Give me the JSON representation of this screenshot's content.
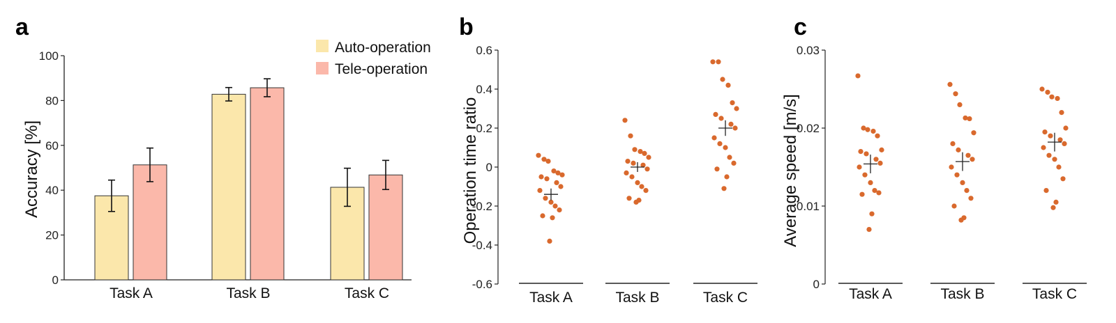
{
  "colors": {
    "auto": "#fbe7ab",
    "tele": "#fbb8aa",
    "bar_edge": "#333333",
    "dot": "#d9692d",
    "axis": "#222222"
  },
  "chart_data": [
    {
      "panel": "a",
      "type": "bar",
      "categories": [
        "Task A",
        "Task B",
        "Task C"
      ],
      "series": [
        {
          "name": "Auto-operation",
          "values": [
            37.5,
            82.8,
            41.3
          ],
          "errors": [
            7.0,
            3.0,
            8.5
          ]
        },
        {
          "name": "Tele-operation",
          "values": [
            51.3,
            85.7,
            46.8
          ],
          "errors": [
            7.5,
            4.0,
            6.5
          ]
        }
      ],
      "ylabel": "Accuracy [%]",
      "ylim": [
        0,
        100
      ],
      "yticks": [
        "0",
        "20",
        "40",
        "60",
        "80",
        "100"
      ],
      "legend": "top-right",
      "grid": false
    },
    {
      "panel": "b",
      "type": "scatter",
      "categories": [
        "Task A",
        "Task B",
        "Task C"
      ],
      "points": [
        [
          0.06,
          0.04,
          0.03,
          -0.02,
          -0.03,
          -0.04,
          -0.05,
          -0.06,
          -0.08,
          -0.1,
          -0.12,
          -0.16,
          -0.18,
          -0.2,
          -0.22,
          -0.25,
          -0.26,
          -0.38
        ],
        [
          0.24,
          0.16,
          0.09,
          0.08,
          0.07,
          0.05,
          0.03,
          0.02,
          0.01,
          -0.01,
          -0.03,
          -0.05,
          -0.08,
          -0.1,
          -0.12,
          -0.16,
          -0.17,
          -0.18
        ],
        [
          0.54,
          0.54,
          0.45,
          0.42,
          0.33,
          0.3,
          0.27,
          0.25,
          0.22,
          0.2,
          0.15,
          0.12,
          0.1,
          0.05,
          0.02,
          -0.01,
          -0.05,
          -0.11
        ]
      ],
      "means": [
        -0.14,
        0.0,
        0.2
      ],
      "sem": [
        0.03,
        0.025,
        0.04
      ],
      "ylabel": "Operation time ratio",
      "ylim": [
        -0.6,
        0.6
      ],
      "yticks": [
        "-0.6",
        "-0.4",
        "-0.2",
        "0",
        "0.2",
        "0.4",
        "0.6"
      ],
      "grid": false
    },
    {
      "panel": "c",
      "type": "scatter",
      "categories": [
        "Task A",
        "Task B",
        "Task C"
      ],
      "points": [
        [
          0.0267,
          0.02,
          0.0198,
          0.0196,
          0.019,
          0.0172,
          0.017,
          0.0167,
          0.016,
          0.0155,
          0.015,
          0.014,
          0.013,
          0.012,
          0.0117,
          0.0115,
          0.009,
          0.007
        ],
        [
          0.0256,
          0.0244,
          0.023,
          0.0213,
          0.0212,
          0.0194,
          0.018,
          0.0172,
          0.0165,
          0.016,
          0.015,
          0.014,
          0.013,
          0.012,
          0.011,
          0.01,
          0.0085,
          0.0082
        ],
        [
          0.025,
          0.0246,
          0.024,
          0.0238,
          0.022,
          0.02,
          0.0195,
          0.019,
          0.0185,
          0.018,
          0.0175,
          0.0165,
          0.016,
          0.015,
          0.0135,
          0.012,
          0.0105,
          0.0098
        ]
      ],
      "means": [
        0.0154,
        0.0157,
        0.0182
      ],
      "sem": [
        0.0012,
        0.0012,
        0.0012
      ],
      "ylabel": "Average speed [m/s]",
      "ylim": [
        0,
        0.03
      ],
      "yticks": [
        "0",
        "0.01",
        "0.02",
        "0.03"
      ],
      "grid": false
    }
  ]
}
